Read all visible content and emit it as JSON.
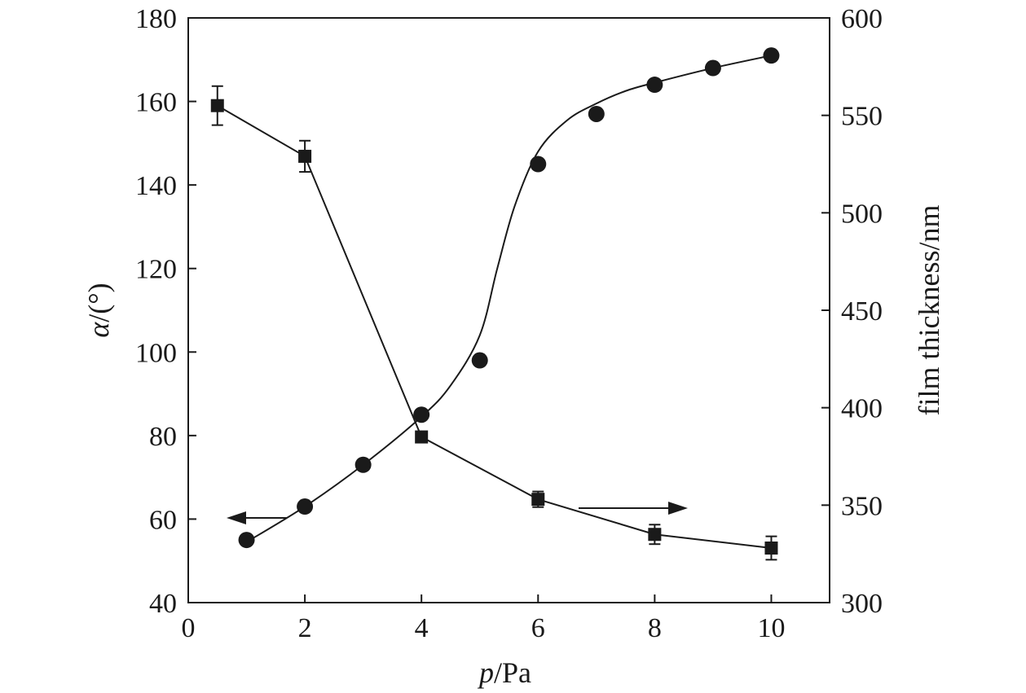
{
  "chart_data": {
    "type": "scatter",
    "xlabel_italic": "p",
    "xlabel_rest": "/Pa",
    "ylabel_left_italic": "α",
    "ylabel_left_rest": "/(°)",
    "ylabel_right": "film thickness/nm",
    "xlim": [
      0,
      11
    ],
    "ylim_left": [
      40,
      180
    ],
    "ylim_right": [
      300,
      600
    ],
    "x_ticks": [
      "0",
      "2",
      "4",
      "6",
      "8",
      "10"
    ],
    "y_left_ticks": [
      "40",
      "60",
      "80",
      "100",
      "120",
      "140",
      "160",
      "180"
    ],
    "y_right_ticks": [
      "300",
      "350",
      "400",
      "450",
      "500",
      "550",
      "600"
    ],
    "series": [
      {
        "axis": "left",
        "marker": "circle",
        "line": "smooth",
        "x": [
          1,
          2,
          3,
          4,
          5,
          6,
          7,
          8,
          9,
          10
        ],
        "y": [
          55,
          63,
          73,
          85,
          98,
          145,
          157,
          164,
          168,
          171
        ],
        "fit": {
          "x": [
            1,
            2,
            3,
            4,
            4.5,
            5,
            5.3,
            5.6,
            6,
            6.5,
            7,
            7.5,
            8,
            9,
            10
          ],
          "y": [
            54.5,
            63,
            73,
            84.5,
            92,
            104,
            120,
            135,
            148,
            155.5,
            159.5,
            162.5,
            164.5,
            168,
            171
          ]
        }
      },
      {
        "axis": "right",
        "marker": "square",
        "line": "straight",
        "x": [
          0.5,
          2,
          4,
          6,
          8,
          10
        ],
        "y": [
          555,
          529,
          385,
          353,
          335,
          328
        ],
        "err": [
          10,
          8,
          0,
          4,
          5,
          6
        ]
      }
    ],
    "annotations": [
      {
        "direction": "left",
        "points_to": "left-axis"
      },
      {
        "direction": "right",
        "points_to": "right-axis"
      }
    ],
    "grid": false,
    "legend": "none"
  }
}
